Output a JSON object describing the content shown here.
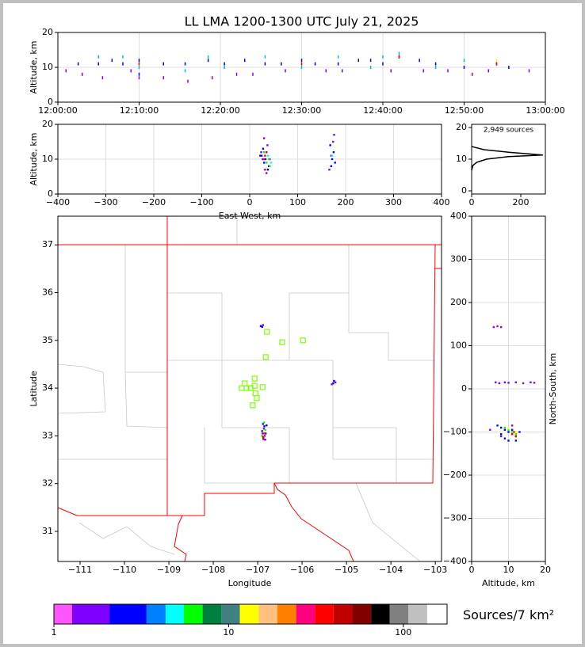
{
  "chart_data": [
    {
      "type": "scatter",
      "title": "LL LMA 1200-1300 UTC July 21, 2025",
      "ylabel": "Altitude, km",
      "xlim": [
        "12:00:00",
        "13:00:00"
      ],
      "xticks": [
        "12:00:00",
        "12:10:00",
        "12:20:00",
        "12:30:00",
        "12:40:00",
        "12:50:00",
        "13:00:00"
      ],
      "ylim": [
        0,
        20
      ],
      "yticks": [
        0,
        10,
        20
      ],
      "grid": true,
      "marker": "streak",
      "series": [
        {
          "color": "#0000ff",
          "x": [
            "12:02:30",
            "12:05:00",
            "12:06:40",
            "12:08:00",
            "12:10:00",
            "12:10:00",
            "12:13:00",
            "12:15:40",
            "12:18:30",
            "12:20:30",
            "12:23:00",
            "12:25:30",
            "12:27:30",
            "12:30:00",
            "12:31:40",
            "12:34:30",
            "12:37:00",
            "12:38:30",
            "12:40:00",
            "12:42:00",
            "12:44:30",
            "12:46:30",
            "12:50:00",
            "12:54:00",
            "12:55:30"
          ],
          "y": [
            11,
            11,
            12,
            11,
            12,
            8,
            11,
            11,
            12,
            11,
            12,
            11,
            11,
            12,
            11,
            11,
            12,
            12,
            11,
            13,
            12,
            11,
            10,
            11,
            10
          ]
        },
        {
          "color": "#00c0c0",
          "x": [
            "12:05:00",
            "12:08:00",
            "12:10:00",
            "12:15:40",
            "12:18:30",
            "12:20:30",
            "12:25:30",
            "12:30:00",
            "12:34:30",
            "12:38:30",
            "12:40:00",
            "12:42:00",
            "12:46:30",
            "12:50:00"
          ],
          "y": [
            13,
            13,
            10,
            9,
            13,
            10,
            13,
            10,
            13,
            10,
            13,
            14,
            10,
            12
          ]
        },
        {
          "color": "#8000ff",
          "x": [
            "12:01:00",
            "12:03:00",
            "12:05:30",
            "12:09:00",
            "12:10:00",
            "12:13:00",
            "12:16:00",
            "12:19:00",
            "12:22:00",
            "12:24:00",
            "12:28:00",
            "12:33:00",
            "12:35:00",
            "12:41:00",
            "12:45:00",
            "12:48:00",
            "12:51:00",
            "12:53:00",
            "12:58:00"
          ],
          "y": [
            9,
            8,
            7,
            9,
            7,
            7,
            6,
            7,
            8,
            8,
            9,
            9,
            9,
            9,
            9,
            9,
            8,
            9,
            9
          ]
        },
        {
          "color": "#ff0000",
          "x": [
            "12:10:00",
            "12:30:00",
            "12:42:00",
            "12:54:00"
          ],
          "y": [
            11,
            11,
            13,
            11
          ]
        },
        {
          "color": "#ffff00",
          "x": [
            "12:54:00"
          ],
          "y": [
            12
          ]
        }
      ]
    },
    {
      "type": "scatter",
      "xlabel": "East-West, km",
      "ylabel": "Altitude, km",
      "xlim": [
        -400,
        400
      ],
      "xticks": [
        {
          "value": -400,
          "label": "−400"
        },
        {
          "value": -300,
          "label": "−300"
        },
        {
          "value": -200,
          "label": "−200"
        },
        {
          "value": -100,
          "label": "−100"
        },
        0,
        100,
        200,
        300,
        400
      ],
      "ylim": [
        0,
        20
      ],
      "yticks": [
        0,
        10,
        20
      ],
      "grid": true,
      "marker": "square",
      "series": [
        {
          "color": "#0000ff",
          "x": [
            25,
            30,
            35,
            40,
            28,
            33,
            38,
            22,
            170,
            172,
            175,
            168,
            178
          ],
          "y": [
            11,
            9,
            12,
            8,
            13,
            10,
            7,
            11,
            8,
            10,
            12,
            14,
            9
          ]
        },
        {
          "color": "#8000ff",
          "x": [
            27,
            32,
            37,
            42,
            30,
            35,
            24,
            166,
            170,
            174,
            176
          ],
          "y": [
            10,
            7,
            14,
            10,
            16,
            6,
            12,
            7,
            11,
            15,
            17
          ]
        },
        {
          "color": "#00ff00",
          "x": [
            35,
            40,
            42,
            30
          ],
          "y": [
            9,
            10,
            8,
            12
          ]
        },
        {
          "color": "#00ffff",
          "x": [
            45,
            38,
            172
          ],
          "y": [
            9,
            11,
            11
          ]
        },
        {
          "color": "#ff0000",
          "x": [
            32,
            35,
            30
          ],
          "y": [
            11,
            12,
            10
          ]
        }
      ]
    },
    {
      "type": "line",
      "annotation": "2,949 sources",
      "xlim": [
        0,
        300
      ],
      "xticks": [
        0,
        200
      ],
      "ylim": [
        -1,
        21
      ],
      "yticks": [
        0,
        10,
        20
      ],
      "grid": false,
      "series": [
        {
          "color": "#000000",
          "x": [
            0,
            5,
            20,
            60,
            150,
            290,
            150,
            50,
            10,
            0
          ],
          "y": [
            6.5,
            8,
            9,
            10,
            10.8,
            11.3,
            12.2,
            13,
            13.8,
            14
          ]
        }
      ]
    },
    {
      "type": "scatter",
      "xlabel": "Longitude",
      "ylabel": "Latitude",
      "xlim": [
        -111.5,
        -102.86
      ],
      "xticks": [
        {
          "value": -111,
          "label": "−111"
        },
        {
          "value": -110,
          "label": "−110"
        },
        {
          "value": -109,
          "label": "−109"
        },
        {
          "value": -108,
          "label": "−108"
        },
        {
          "value": -107,
          "label": "−107"
        },
        {
          "value": -106,
          "label": "−106"
        },
        {
          "value": -105,
          "label": "−105"
        },
        {
          "value": -104,
          "label": "−104"
        },
        {
          "value": -103,
          "label": "−103"
        }
      ],
      "ylim": [
        30.37,
        37.6
      ],
      "yticks": [
        31,
        32,
        33,
        34,
        35,
        36,
        37
      ],
      "grid": false,
      "marker": "square",
      "series": [
        {
          "color": "#0000ff",
          "x": [
            -106.88,
            -106.85,
            -106.9,
            -106.82,
            -106.87,
            -106.8,
            -105.3,
            -105.28,
            -106.93,
            -106.9
          ],
          "y": [
            33.25,
            33.2,
            33.1,
            33.05,
            32.95,
            33.22,
            34.1,
            34.15,
            35.3,
            35.28
          ]
        },
        {
          "color": "#8000ff",
          "x": [
            -106.86,
            -106.84,
            -106.89,
            -106.83,
            -105.33,
            -105.25,
            -106.88
          ],
          "y": [
            33.15,
            33.0,
            33.05,
            32.92,
            34.08,
            34.12,
            35.32
          ]
        },
        {
          "color": "#00ff00",
          "x": [
            -106.83,
            -106.9,
            -106.86
          ],
          "y": [
            33.12,
            33.0,
            33.28
          ]
        },
        {
          "color": "#ff0000",
          "x": [
            -106.85,
            -106.88,
            -106.87
          ],
          "y": [
            33.05,
            32.98,
            32.93
          ]
        },
        {
          "color": "#ffff00",
          "x": [
            -106.86
          ],
          "y": [
            33.1
          ]
        },
        {
          "color": "#80ff00",
          "marker": "open-square",
          "x": [
            -106.79,
            -106.45,
            -105.98,
            -106.82,
            -107.07,
            -107.29,
            -107.07,
            -107.36,
            -107.25,
            -107.16,
            -106.89,
            -107.05,
            -107.02,
            -107.11
          ],
          "y": [
            35.18,
            34.96,
            35.0,
            34.65,
            34.2,
            34.1,
            34.05,
            34.0,
            34.0,
            34.0,
            34.02,
            33.89,
            33.79,
            33.64
          ]
        }
      ]
    },
    {
      "type": "scatter",
      "xlabel": "Altitude, km",
      "ylabel": "North-South, km",
      "ylabel_side": "right",
      "xlim": [
        0,
        20
      ],
      "xticks": [
        0,
        10,
        20
      ],
      "ylim": [
        -400,
        400
      ],
      "yticks": [
        {
          "value": -400,
          "label": "−400"
        },
        {
          "value": -300,
          "label": "−300"
        },
        {
          "value": -200,
          "label": "−200"
        },
        {
          "value": -100,
          "label": "−100"
        },
        0,
        100,
        200,
        300,
        400
      ],
      "grid": true,
      "marker": "square",
      "series": [
        {
          "color": "#0000ff",
          "x": [
            7,
            8,
            9,
            10,
            11,
            12,
            13,
            9,
            10,
            11,
            12,
            8
          ],
          "y": [
            -85,
            -90,
            -95,
            -100,
            -105,
            -110,
            -100,
            -115,
            -120,
            -95,
            -120,
            -105
          ]
        },
        {
          "color": "#8000ff",
          "x": [
            6,
            7,
            8,
            6.5,
            7.5,
            8,
            10,
            12,
            14,
            16,
            17,
            9,
            11,
            5
          ],
          "y": [
            143,
            145,
            143,
            15,
            13,
            -110,
            14,
            15,
            13,
            15,
            14,
            15,
            -85,
            -95
          ]
        },
        {
          "color": "#00ff00",
          "x": [
            10,
            11,
            12,
            9
          ],
          "y": [
            -95,
            -100,
            -105,
            -90
          ]
        },
        {
          "color": "#ff0000",
          "x": [
            11,
            12,
            11.5
          ],
          "y": [
            -105,
            -110,
            -100
          ]
        },
        {
          "color": "#ffff00",
          "x": [
            12,
            10
          ],
          "y": [
            -100,
            -92
          ]
        }
      ]
    },
    {
      "type": "colorbar",
      "label": "Sources/7 km²",
      "log": true,
      "xlim": [
        1,
        178
      ],
      "xticks": [
        1,
        10,
        100
      ],
      "bounds": [
        1,
        1.27,
        2.08,
        3.39,
        4.36,
        5.54,
        7.1,
        9.1,
        11.6,
        14.9,
        19.0,
        24.4,
        31.2,
        39.9,
        51.1,
        65.4,
        83.6,
        107,
        137,
        178
      ],
      "colors": [
        "#ff55ff",
        "#8000ff",
        "#0000ff",
        "#0080ff",
        "#00ffff",
        "#00ff00",
        "#008040",
        "#408080",
        "#ffff00",
        "#ffc080",
        "#ff8000",
        "#ff0080",
        "#ff0000",
        "#c00000",
        "#800000",
        "#000000",
        "#808080",
        "#c0c0c0",
        "#ffffff"
      ]
    }
  ]
}
